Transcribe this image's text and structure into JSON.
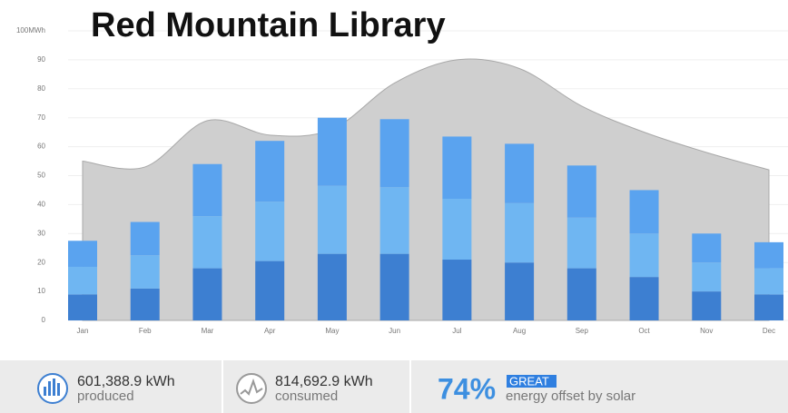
{
  "chart_data": {
    "type": "bar",
    "stacked": true,
    "title": "Red Mountain Library",
    "categories": [
      "Jan",
      "Feb",
      "Mar",
      "Apr",
      "May",
      "Jun",
      "Jul",
      "Aug",
      "Sep",
      "Oct",
      "Nov",
      "Dec"
    ],
    "series": [
      {
        "color": "#3d7fd1",
        "values": [
          9,
          11,
          18,
          20.5,
          23,
          23,
          21,
          20,
          18,
          15,
          10,
          9
        ]
      },
      {
        "color": "#6fb6f2",
        "values": [
          9.5,
          11.5,
          18,
          20.5,
          23.5,
          23,
          21,
          20.5,
          17.5,
          15,
          10,
          9
        ]
      },
      {
        "color": "#5aa3ef",
        "values": [
          9,
          11.5,
          18,
          21,
          23.5,
          23.5,
          21.5,
          20.5,
          18,
          15,
          10,
          9
        ]
      }
    ],
    "area": {
      "color": "#cfcfcf",
      "values": [
        55,
        53,
        69,
        64,
        66,
        82,
        90,
        87,
        74,
        65,
        58,
        52
      ]
    },
    "ylim": [
      0,
      100
    ],
    "yticks": [
      0,
      10,
      20,
      30,
      40,
      50,
      60,
      70,
      80,
      90,
      {
        "value": 100,
        "label": "100MWh"
      }
    ],
    "grid": true
  },
  "summary": {
    "produced": {
      "value": "601,388.9 kWh",
      "label": "produced"
    },
    "consumed": {
      "value": "814,692.9 kWh",
      "label": "consumed"
    },
    "offset": {
      "value": "74%",
      "badge": "GREAT",
      "label": "energy offset by solar"
    }
  }
}
